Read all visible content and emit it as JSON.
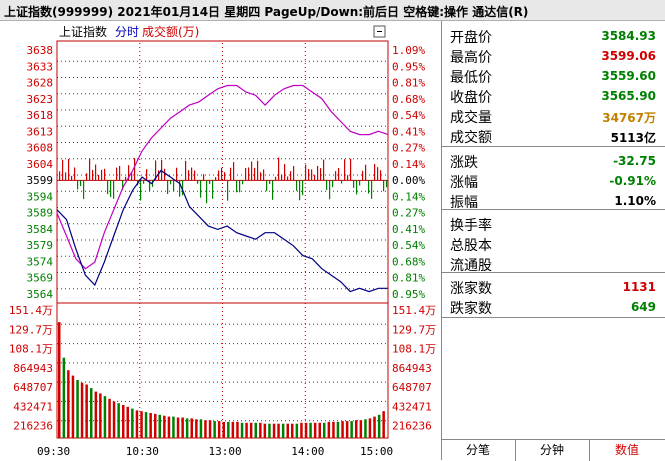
{
  "title": "上证指数(999999)  2021年01月14日  星期四  PageUp/Down:前后日  空格键:操作  通达信(R)",
  "legend": {
    "index_name": "上证指数",
    "time_label": "分时",
    "amount_label": "成交额(万)",
    "close_icon": "close-icon"
  },
  "price_axis": {
    "left": [
      "3638",
      "3633",
      "3628",
      "3623",
      "3618",
      "3613",
      "3608",
      "3604",
      "3599",
      "3594",
      "3589",
      "3584",
      "3579",
      "3574",
      "3569",
      "3564"
    ],
    "right": [
      "1.09%",
      "0.95%",
      "0.81%",
      "0.68%",
      "0.54%",
      "0.41%",
      "0.27%",
      "0.14%",
      "0.00%",
      "0.14%",
      "0.27%",
      "0.41%",
      "0.54%",
      "0.68%",
      "0.81%",
      "0.95%"
    ],
    "up_color": "#d00000",
    "down_color": "#008000",
    "mid_color": "#000000"
  },
  "volume_axis": {
    "left": [
      "151.4万",
      "129.7万",
      "108.1万",
      "864943",
      "648707",
      "432471",
      "216236"
    ],
    "right": [
      "151.4万",
      "129.7万",
      "108.1万",
      "864943",
      "648707",
      "432471",
      "216236"
    ]
  },
  "time_axis": [
    "09:30",
    "10:30",
    "13:00",
    "14:00",
    "15:00"
  ],
  "chart_data": {
    "type": "line",
    "title": "",
    "x": "minutes 0-240",
    "prev_close": 3599,
    "ylim": [
      3561.5,
      3641
    ],
    "series": [
      {
        "color": "#c000c0",
        "values": [
          3589,
          3582,
          3575,
          3572,
          3574,
          3583,
          3590,
          3597,
          3602,
          3608,
          3612,
          3615,
          3618,
          3620,
          3622,
          3623,
          3625,
          3627,
          3628,
          3628,
          3626,
          3625,
          3622,
          3625,
          3627,
          3628,
          3628,
          3626,
          3624,
          3620,
          3617,
          3614,
          3613,
          3613,
          3614,
          3613
        ]
      },
      {
        "color": "#000080",
        "values": [
          3590,
          3587,
          3578,
          3570,
          3567,
          3574,
          3582,
          3590,
          3596,
          3600,
          3598,
          3602,
          3600,
          3598,
          3591,
          3588,
          3585,
          3584,
          3585,
          3583,
          3582,
          3581,
          3583,
          3583,
          3581,
          3579,
          3576,
          3575,
          3572,
          3570,
          3568,
          3565,
          3566,
          3565,
          3566,
          3566
        ]
      }
    ],
    "volume_ylim": [
      0,
      1514000
    ],
    "volume": [
      1300000,
      900000,
      760000,
      700000,
      650000,
      620000,
      600000,
      560000,
      520000,
      500000,
      470000,
      440000,
      410000,
      390000,
      370000,
      350000,
      330000,
      310000,
      300000,
      290000,
      280000,
      270000,
      260000,
      250000,
      240000,
      240000,
      230000,
      230000,
      220000,
      220000,
      210000,
      210000,
      200000,
      200000,
      190000,
      190000,
      180000,
      180000,
      180000,
      180000,
      170000,
      170000,
      170000,
      170000,
      170000,
      160000,
      160000,
      160000,
      160000,
      160000,
      160000,
      160000,
      160000,
      170000,
      170000,
      170000,
      170000,
      170000,
      170000,
      180000,
      180000,
      180000,
      190000,
      190000,
      190000,
      200000,
      200000,
      210000,
      220000,
      240000,
      260000,
      300000
    ]
  },
  "panel": {
    "rows": [
      {
        "label": "开盘价",
        "value": "3584.93",
        "color": "#008000"
      },
      {
        "label": "最高价",
        "value": "3599.06",
        "color": "#d00000"
      },
      {
        "label": "最低价",
        "value": "3559.60",
        "color": "#008000"
      },
      {
        "label": "收盘价",
        "value": "3565.90",
        "color": "#008000"
      },
      {
        "label": "成交量",
        "value": "34767万",
        "color": "#c08000"
      },
      {
        "label": "成交额",
        "value": "5113亿",
        "color": "#000000"
      },
      {
        "label": "涨跌",
        "value": "-32.75",
        "color": "#008000"
      },
      {
        "label": "涨幅",
        "value": "-0.91%",
        "color": "#008000"
      },
      {
        "label": "振幅",
        "value": "1.10%",
        "color": "#000000"
      },
      {
        "label": "换手率",
        "value": "",
        "color": "#000000"
      },
      {
        "label": "总股本",
        "value": "",
        "color": "#000000"
      },
      {
        "label": "流通股",
        "value": "",
        "color": "#000000"
      },
      {
        "label": "涨家数",
        "value": "1131",
        "color": "#d00000"
      },
      {
        "label": "跌家数",
        "value": "649",
        "color": "#008000"
      }
    ]
  },
  "tabs": [
    {
      "label": "分笔",
      "active": false
    },
    {
      "label": "分钟",
      "active": false
    },
    {
      "label": "数值",
      "active": true
    }
  ]
}
